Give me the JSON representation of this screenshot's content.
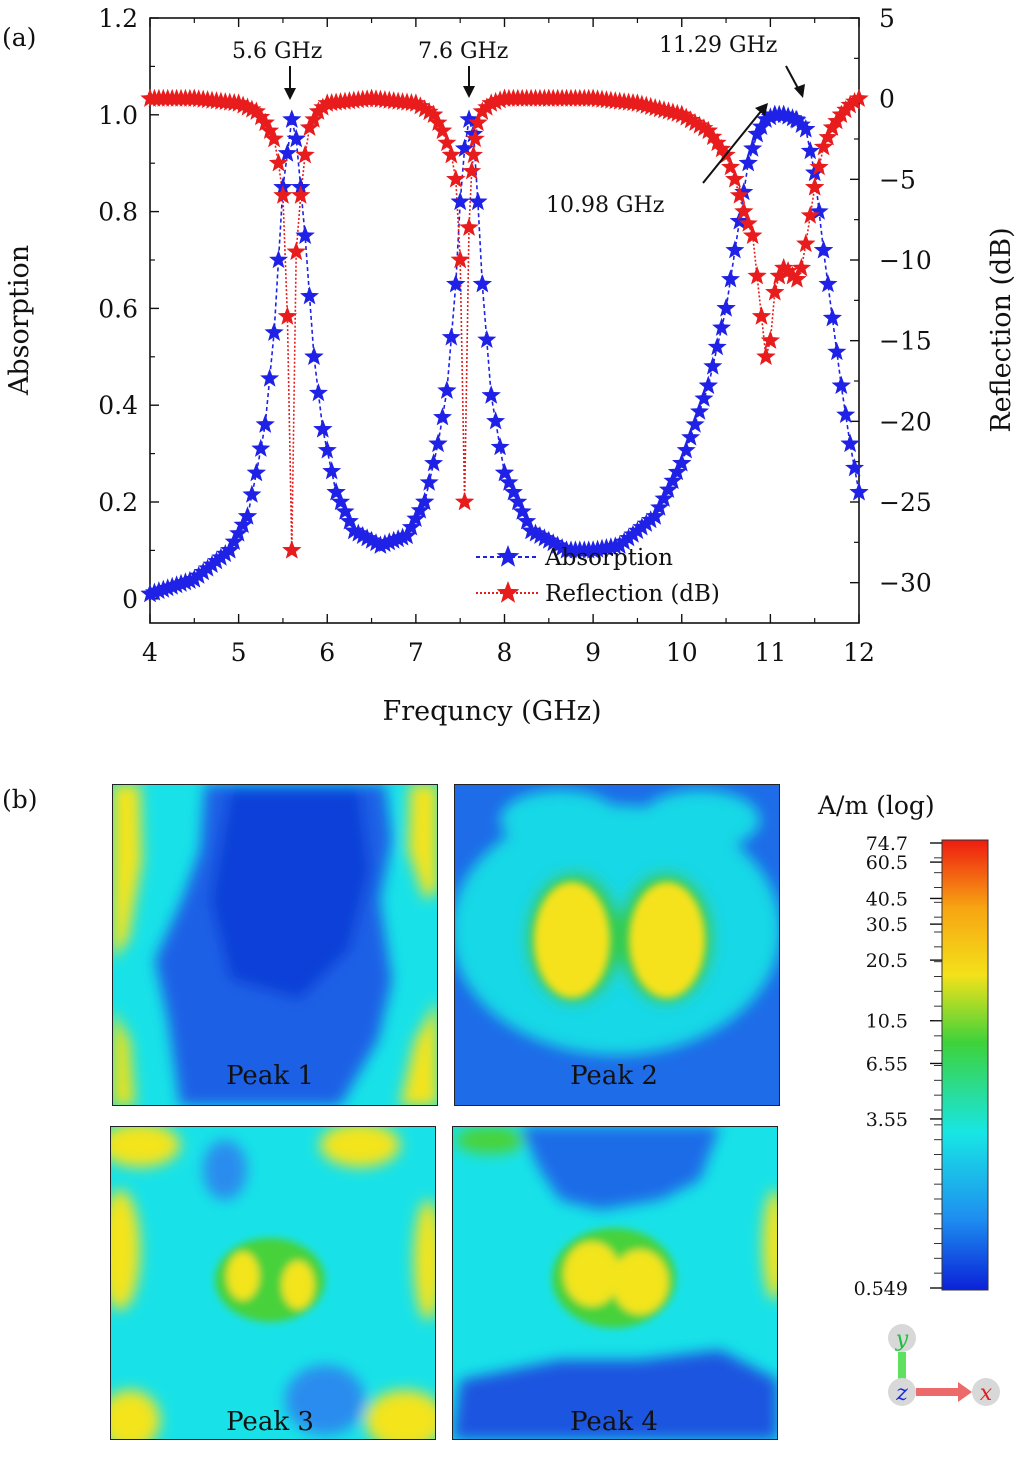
{
  "panel_a_label": "(a)",
  "panel_b_label": "(b)",
  "chart_data": {
    "type": "line",
    "title": "",
    "xlabel": "Frequncy (GHz)",
    "ylabel": "Absorption",
    "y2label": "Reflection (dB)",
    "xlim": [
      4,
      12
    ],
    "ylim": [
      -0.05,
      1.2
    ],
    "y2lim": [
      -32.5,
      5
    ],
    "x_ticks": [
      "4",
      "5",
      "6",
      "7",
      "8",
      "9",
      "10",
      "11",
      "12"
    ],
    "y_ticks": [
      "0",
      "0.2",
      "0.4",
      "0.6",
      "0.8",
      "1.0",
      "1.2"
    ],
    "y2_ticks": [
      "−30",
      "−25",
      "−20",
      "−15",
      "−10",
      "−5",
      "0",
      "5"
    ],
    "series": [
      {
        "name": "Absorption",
        "axis": "left",
        "color": "#1f22e6",
        "marker": "star",
        "line_style": "dashed",
        "x": [
          4.0,
          4.5,
          4.9,
          5.1,
          5.2,
          5.3,
          5.4,
          5.5,
          5.55,
          5.6,
          5.65,
          5.7,
          5.75,
          5.85,
          5.95,
          6.1,
          6.3,
          6.6,
          6.9,
          7.1,
          7.25,
          7.35,
          7.45,
          7.5,
          7.55,
          7.6,
          7.65,
          7.7,
          7.75,
          7.85,
          8.0,
          8.3,
          8.7,
          9.0,
          9.3,
          9.7,
          10.0,
          10.3,
          10.5,
          10.65,
          10.75,
          10.85,
          10.95,
          11.05,
          11.15,
          11.29,
          11.4,
          11.5,
          11.6,
          11.7,
          11.8,
          11.9,
          12.0
        ],
        "values": [
          0.01,
          0.04,
          0.1,
          0.17,
          0.26,
          0.36,
          0.55,
          0.85,
          0.92,
          0.99,
          0.95,
          0.85,
          0.75,
          0.5,
          0.35,
          0.22,
          0.14,
          0.11,
          0.13,
          0.2,
          0.32,
          0.43,
          0.65,
          0.82,
          0.93,
          0.99,
          0.96,
          0.82,
          0.65,
          0.42,
          0.26,
          0.14,
          0.1,
          0.1,
          0.11,
          0.17,
          0.28,
          0.44,
          0.6,
          0.78,
          0.9,
          0.96,
          0.99,
          1.0,
          1.0,
          0.99,
          0.97,
          0.88,
          0.72,
          0.58,
          0.44,
          0.32,
          0.22
        ]
      },
      {
        "name": "Reflection (dB)",
        "axis": "right",
        "color": "#e81c1c",
        "marker": "star",
        "line_style": "dotted",
        "x": [
          4.0,
          4.5,
          5.0,
          5.2,
          5.3,
          5.4,
          5.45,
          5.5,
          5.55,
          5.6,
          5.65,
          5.7,
          5.75,
          5.8,
          5.9,
          6.0,
          6.5,
          7.0,
          7.2,
          7.3,
          7.4,
          7.45,
          7.5,
          7.55,
          7.6,
          7.63,
          7.67,
          7.7,
          7.75,
          7.85,
          8.0,
          8.5,
          9.0,
          9.5,
          10.0,
          10.3,
          10.5,
          10.6,
          10.7,
          10.8,
          10.85,
          10.9,
          10.95,
          11.0,
          11.05,
          11.1,
          11.15,
          11.2,
          11.25,
          11.3,
          11.35,
          11.4,
          11.5,
          11.6,
          11.7,
          11.8,
          11.9,
          12.0
        ],
        "values": [
          0.0,
          0.0,
          -0.3,
          -0.8,
          -1.5,
          -2.5,
          -4.0,
          -6.0,
          -13.5,
          -28.0,
          -9.5,
          -6.0,
          -3.5,
          -1.8,
          -0.8,
          -0.3,
          0.0,
          -0.3,
          -1.0,
          -2.0,
          -3.5,
          -5.0,
          -10.0,
          -25.0,
          -8.0,
          -4.5,
          -2.5,
          -1.5,
          -0.8,
          -0.3,
          0.0,
          0.0,
          0.0,
          -0.3,
          -1.0,
          -2.0,
          -3.5,
          -5.0,
          -7.0,
          -8.5,
          -11.0,
          -13.5,
          -16.0,
          -15.0,
          -12.0,
          -11.0,
          -10.5,
          -10.7,
          -11.0,
          -11.2,
          -10.5,
          -9.0,
          -5.5,
          -3.0,
          -1.8,
          -1.0,
          -0.4,
          0.0
        ]
      }
    ],
    "annotations": [
      {
        "text": "5.6 GHz",
        "x": 5.6,
        "series": "Absorption"
      },
      {
        "text": "7.6 GHz",
        "x": 7.6,
        "series": "Absorption"
      },
      {
        "text": "11.29 GHz",
        "x": 11.29,
        "series": "Absorption"
      },
      {
        "text": "10.98 GHz",
        "x": 10.98,
        "series": "Absorption"
      }
    ],
    "legend_position": "bottom-center"
  },
  "field_maps": {
    "peaks": [
      "Peak 1",
      "Peak 2",
      "Peak 3",
      "Peak 4"
    ],
    "colorbar": {
      "title": "A/m (log)",
      "ticks": [
        "74.7",
        "60.5",
        "40.5",
        "30.5",
        "20.5",
        "10.5",
        "6.55",
        "3.55",
        "0.549"
      ],
      "colors": [
        "#ee1c10",
        "#f7a412",
        "#f4e11a",
        "#3ed23a",
        "#18e6e4",
        "#1e8ff0",
        "#0a22d8"
      ]
    },
    "axes_triad": {
      "y": "y",
      "z": "z",
      "x": "x"
    }
  }
}
